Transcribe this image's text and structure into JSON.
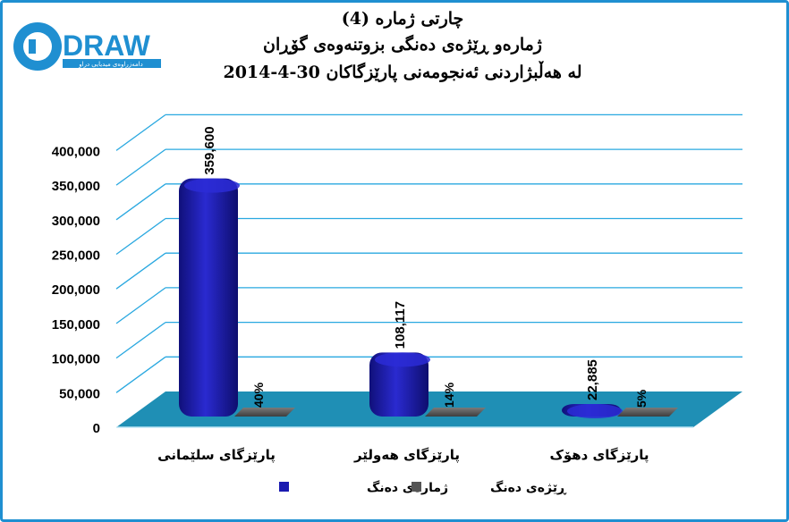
{
  "logo": {
    "wordmark": "DRAW",
    "tagline": "دامەزراوەی میدیایی دراو"
  },
  "title_lines": [
    "چارتی ژمارە (4)",
    "ژمارەو ڕێژەی دەنگی بزوتنەوەی گۆڕان",
    "لە هەڵبژاردنی ئەنجومەنی پارێزگاکان 30-4-2014"
  ],
  "chart_data": {
    "type": "bar",
    "categories": [
      "پارێزگای سلێمانی",
      "پارێزگای هەولێر",
      "پارێزگای دهۆک"
    ],
    "series": [
      {
        "name": "ژمارەی دەنگ",
        "values": [
          359600,
          108117,
          22885
        ],
        "labels": [
          "359,600",
          "108,117",
          "22,885"
        ],
        "color": "#1a1ab0"
      },
      {
        "name": "ڕێژەی دەنگ",
        "values": [
          40,
          14,
          5
        ],
        "labels": [
          "40%",
          "14%",
          "5%"
        ],
        "color": "#555555"
      }
    ],
    "y_ticks": [
      "0",
      "50,000",
      "100,000",
      "150,000",
      "200,000",
      "250,000",
      "300,000",
      "350,000",
      "400,000"
    ],
    "ylim": [
      0,
      400000
    ],
    "grid": true,
    "floor_color": "#1f8fb5",
    "grid_color": "#29a8e0",
    "legend_position": "bottom"
  }
}
